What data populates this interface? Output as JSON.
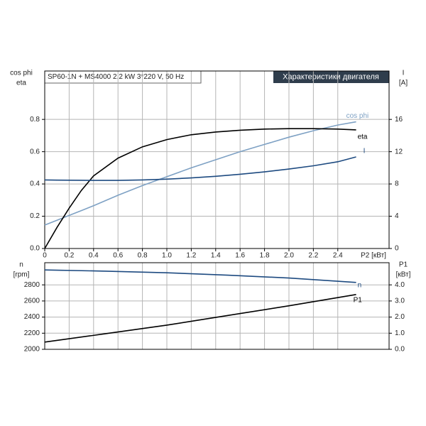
{
  "chart_data": [
    {
      "type": "line",
      "title": "Характеристики двигателя",
      "subtitle": "SP60-1N + MS4000  2.2 kW  3*220 V, 50 Hz",
      "ylabel": [
        "cos phi",
        "eta"
      ],
      "y2label": [
        "I",
        "[A]"
      ],
      "xlabel": "P2 [кВт]",
      "x": [
        0,
        0.1,
        0.2,
        0.3,
        0.4,
        0.6,
        0.8,
        1.0,
        1.2,
        1.4,
        1.6,
        1.8,
        2.0,
        2.2,
        2.4,
        2.55
      ],
      "series": [
        {
          "name": "cos phi",
          "color": "#7ea1c4",
          "values": [
            0.145,
            0.175,
            0.205,
            0.235,
            0.265,
            0.33,
            0.39,
            0.445,
            0.5,
            0.55,
            0.6,
            0.645,
            0.69,
            0.73,
            0.765,
            0.785
          ]
        },
        {
          "name": "eta",
          "color": "#000000",
          "values": [
            0,
            0.13,
            0.25,
            0.36,
            0.45,
            0.56,
            0.63,
            0.675,
            0.705,
            0.722,
            0.733,
            0.74,
            0.743,
            0.743,
            0.74,
            0.735
          ]
        },
        {
          "name": "I",
          "color": "#1d4a80",
          "axis": "y2",
          "values": [
            8.5,
            8.48,
            8.46,
            8.45,
            8.44,
            8.44,
            8.5,
            8.6,
            8.75,
            8.95,
            9.2,
            9.5,
            9.85,
            10.25,
            10.75,
            11.35
          ]
        }
      ],
      "xlim": [
        0,
        2.82
      ],
      "xticks": [
        0,
        0.2,
        0.4,
        0.6,
        0.8,
        {
          "value": 1,
          "label": "1.0"
        },
        1.2,
        1.4,
        1.6,
        1.8,
        {
          "value": 2,
          "label": "2.0"
        },
        2.2,
        2.4
      ],
      "ylim": [
        0,
        1.1
      ],
      "yticks": [
        {
          "value": 0,
          "label": "0.0"
        },
        0.2,
        0.4,
        0.6,
        0.8
      ],
      "y2lim": [
        0,
        22
      ],
      "y2ticks": [
        0,
        4,
        8,
        12,
        16
      ],
      "grid": true
    },
    {
      "type": "line",
      "ylabel": [
        "n",
        "[rpm]"
      ],
      "y2label": [
        "P1",
        "[кВт]"
      ],
      "x": [
        0,
        0.5,
        1.0,
        1.5,
        2.0,
        2.55
      ],
      "series": [
        {
          "name": "n",
          "color": "#1d4a80",
          "values": [
            2985,
            2970,
            2950,
            2920,
            2885,
            2830
          ]
        },
        {
          "name": "P1",
          "color": "#000000",
          "axis": "y2",
          "values": [
            0.45,
            0.97,
            1.5,
            2.1,
            2.7,
            3.4
          ]
        }
      ],
      "xlim": [
        0,
        2.82
      ],
      "ylim": [
        2000,
        3075
      ],
      "yticks": [
        2000,
        2200,
        2400,
        2600,
        2800
      ],
      "y2lim": [
        0,
        5.375
      ],
      "y2ticks": [
        {
          "value": 0,
          "label": "0.0"
        },
        {
          "value": 1,
          "label": "1.0"
        },
        {
          "value": 2,
          "label": "2.0"
        },
        {
          "value": 3,
          "label": "3.0"
        },
        {
          "value": 4,
          "label": "4.0"
        }
      ],
      "grid": true
    }
  ]
}
